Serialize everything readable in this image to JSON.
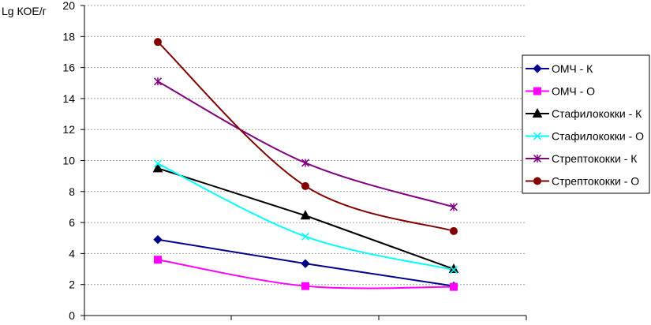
{
  "chart_data": {
    "type": "line",
    "ylabel": "Lg КОЕ/г",
    "xlabel": "",
    "ylim": [
      0,
      20
    ],
    "yticks": [
      "0",
      "2",
      "4",
      "6",
      "8",
      "10",
      "12",
      "14",
      "16",
      "18",
      "20"
    ],
    "x": [
      1,
      2,
      3
    ],
    "grid": "horizontal dashed",
    "legend_position": "right",
    "series": [
      {
        "name": "ОМЧ - К",
        "values": [
          4.9,
          3.35,
          1.9
        ],
        "color": "#00008B",
        "marker": "diamond",
        "smooth": false
      },
      {
        "name": "ОМЧ - О",
        "values": [
          3.6,
          1.9,
          1.85
        ],
        "color": "#FF00FF",
        "marker": "square",
        "smooth": true
      },
      {
        "name": "Стафилококки - К",
        "values": [
          9.5,
          6.45,
          3.0
        ],
        "color": "#000000",
        "marker": "triangle",
        "smooth": false
      },
      {
        "name": "Стафилококки - О",
        "values": [
          9.8,
          5.1,
          2.95
        ],
        "color": "#00FFFF",
        "marker": "x",
        "smooth": true
      },
      {
        "name": "Стрептококки - К",
        "values": [
          15.1,
          9.85,
          7.0
        ],
        "color": "#800080",
        "marker": "star",
        "smooth": true
      },
      {
        "name": "Стрептококки - О",
        "values": [
          17.65,
          8.35,
          5.45
        ],
        "color": "#800000",
        "marker": "circle",
        "smooth": true
      }
    ]
  }
}
